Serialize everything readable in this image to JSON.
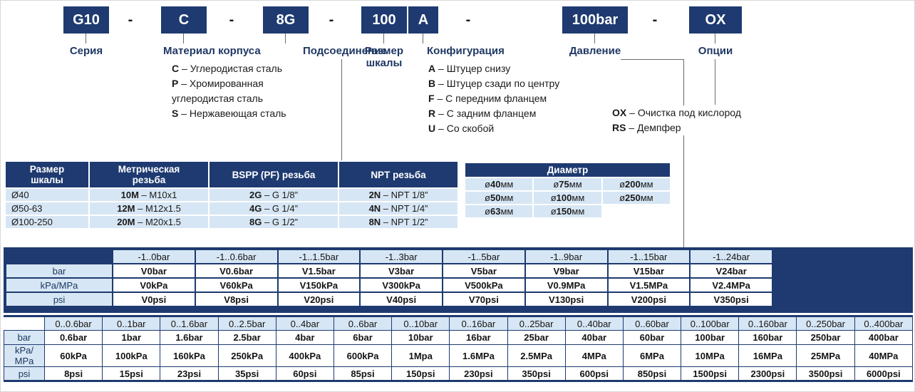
{
  "ui": {
    "sep": " – "
  },
  "colors": {
    "navy": "#1e3a70",
    "light_blue": "#d7e6f4",
    "title_navy": "#1f3864"
  },
  "code": {
    "parts": [
      "G10",
      "C",
      "8G",
      "100",
      "A",
      "100bar",
      "OX"
    ],
    "dash": "-"
  },
  "sections": {
    "series": {
      "title": "Серия"
    },
    "material": {
      "title": "Материал корпуса",
      "items": [
        {
          "code": "C",
          "text": "Углеродистая сталь"
        },
        {
          "code": "P",
          "text": "Хромированная углеродистая сталь"
        },
        {
          "code": "S",
          "text": "Нержавеющая сталь"
        }
      ]
    },
    "connection": {
      "title": "Подсоединение"
    },
    "scale": {
      "title": "Размер шкалы"
    },
    "configuration": {
      "title": "Конфигурация",
      "items": [
        {
          "code": "A",
          "text": "Штуцер снизу"
        },
        {
          "code": "B",
          "text": "Штуцер сзади по центру"
        },
        {
          "code": "F",
          "text": "С передним фланцем"
        },
        {
          "code": "R",
          "text": "С задним фланцем"
        },
        {
          "code": "U",
          "text": "Со скобой"
        }
      ]
    },
    "pressure": {
      "title": "Давление"
    },
    "options": {
      "title": "Опции",
      "items": [
        {
          "code": "OX",
          "text": "Очистка под кислород"
        },
        {
          "code": "RS",
          "text": "Демпфер"
        }
      ]
    }
  },
  "connection_table": {
    "headers": [
      "Размер шкалы",
      "Метрическая резьба",
      "BSPP (PF) резьба",
      "NPT резьба"
    ],
    "rows": [
      {
        "scale": "Ø40",
        "metric": {
          "b": "10M",
          "t": " – M10x1"
        },
        "bspp": {
          "b": "2G",
          "t": " – G 1/8”"
        },
        "npt": {
          "b": "2N",
          "t": " – NPT 1/8”"
        }
      },
      {
        "scale": "Ø50-63",
        "metric": {
          "b": "12M",
          "t": " – M12x1.5"
        },
        "bspp": {
          "b": "4G",
          "t": " – G 1/4”"
        },
        "npt": {
          "b": "4N",
          "t": " – NPT 1/4”"
        }
      },
      {
        "scale": "Ø100-250",
        "metric": {
          "b": "20M",
          "t": " – M20x1.5"
        },
        "bspp": {
          "b": "8G",
          "t": " – G 1/2”"
        },
        "npt": {
          "b": "8N",
          "t": " – NPT 1/2”"
        }
      }
    ]
  },
  "diameter_table": {
    "title": "Диаметр",
    "rows": [
      [
        {
          "pre": "ø",
          "num": "40",
          "suf": "мм"
        },
        {
          "pre": "ø",
          "num": "75",
          "suf": "мм"
        },
        {
          "pre": "ø",
          "num": "200",
          "suf": "мм"
        }
      ],
      [
        {
          "pre": "ø",
          "num": "50",
          "suf": "мм"
        },
        {
          "pre": "ø",
          "num": "100",
          "suf": "мм"
        },
        {
          "pre": "ø",
          "num": "250",
          "suf": "мм"
        }
      ],
      [
        {
          "pre": "ø",
          "num": "63",
          "suf": "мм"
        },
        {
          "pre": "ø",
          "num": "150",
          "suf": "мм"
        },
        null
      ]
    ]
  },
  "vacuum_table": {
    "header": [
      "",
      "-1..0bar",
      "-1..0.6bar",
      "-1..1.5bar",
      "-1..3bar",
      "-1..5bar",
      "-1..9bar",
      "-1..15bar",
      "-1..24bar"
    ],
    "rows": [
      {
        "label": "bar",
        "values": [
          "V0bar",
          "V0.6bar",
          "V1.5bar",
          "V3bar",
          "V5bar",
          "V9bar",
          "V15bar",
          "V24bar"
        ]
      },
      {
        "label": "kPa/MPa",
        "values": [
          "V0kPa",
          "V60kPa",
          "V150kPa",
          "V300kPa",
          "V500kPa",
          "V0.9MPa",
          "V1.5MPa",
          "V2.4MPa"
        ]
      },
      {
        "label": "psi",
        "values": [
          "V0psi",
          "V8psi",
          "V20psi",
          "V40psi",
          "V70psi",
          "V130psi",
          "V200psi",
          "V350psi"
        ]
      }
    ]
  },
  "pressure_table": {
    "header": [
      "",
      "0..0.6bar",
      "0..1bar",
      "0..1.6bar",
      "0..2.5bar",
      "0..4bar",
      "0..6bar",
      "0..10bar",
      "0..16bar",
      "0..25bar",
      "0..40bar",
      "0..60bar",
      "0..100bar",
      "0..160bar",
      "0..250bar",
      "0..400bar"
    ],
    "rows": [
      {
        "label": "bar",
        "values": [
          "0.6bar",
          "1bar",
          "1.6bar",
          "2.5bar",
          "4bar",
          "6bar",
          "10bar",
          "16bar",
          "25bar",
          "40bar",
          "60bar",
          "100bar",
          "160bar",
          "250bar",
          "400bar"
        ]
      },
      {
        "label": "kPa/MPa",
        "values": [
          "60kPa",
          "100kPa",
          "160kPa",
          "250kPa",
          "400kPa",
          "600kPa",
          "1Mpa",
          "1.6MPa",
          "2.5MPa",
          "4MPa",
          "6MPa",
          "10MPa",
          "16MPa",
          "25MPa",
          "40MPa"
        ]
      },
      {
        "label": "psi",
        "values": [
          "8psi",
          "15psi",
          "23psi",
          "35psi",
          "60psi",
          "85psi",
          "150psi",
          "230psi",
          "350psi",
          "600psi",
          "850psi",
          "1500psi",
          "2300psi",
          "3500psi",
          "6000psi"
        ]
      }
    ]
  }
}
